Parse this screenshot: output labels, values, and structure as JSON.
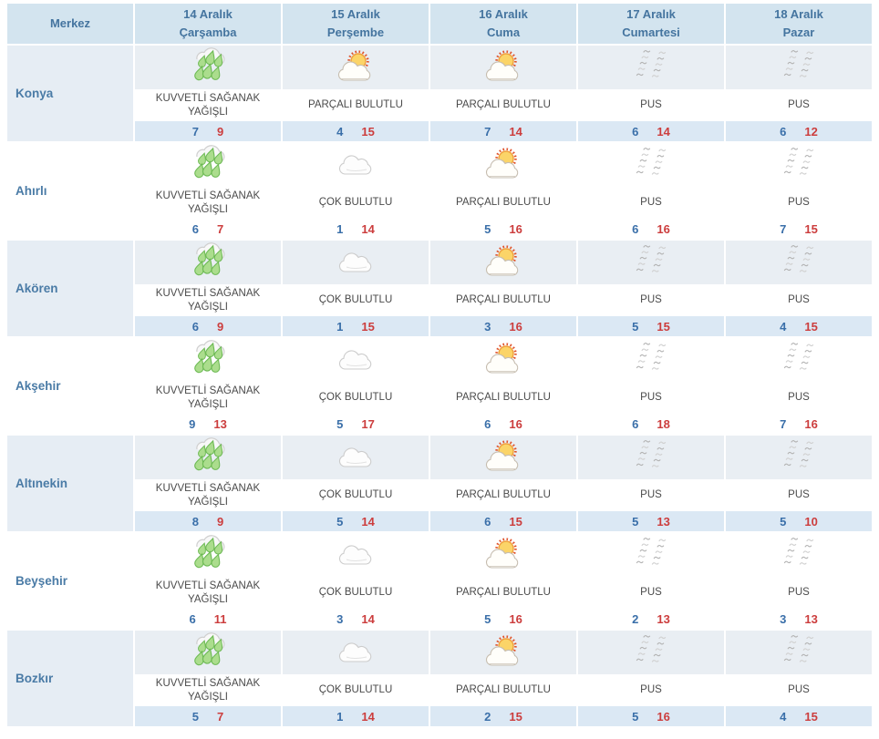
{
  "table": {
    "corner_label": "Merkez",
    "columns": [
      {
        "date": "14 Aralık",
        "day": "Çarşamba"
      },
      {
        "date": "15 Aralık",
        "day": "Perşembe"
      },
      {
        "date": "16 Aralık",
        "day": "Cuma"
      },
      {
        "date": "17 Aralık",
        "day": "Cumartesi"
      },
      {
        "date": "18 Aralık",
        "day": "Pazar"
      }
    ],
    "rows": [
      {
        "city": "Konya",
        "cells": [
          {
            "icon": "heavy-rain",
            "condition": "KUVVETLİ SAĞANAK YAĞIŞLI",
            "min": 7,
            "max": 9
          },
          {
            "icon": "partly-cloudy",
            "condition": "PARÇALI BULUTLU",
            "min": 4,
            "max": 15
          },
          {
            "icon": "partly-cloudy",
            "condition": "PARÇALI BULUTLU",
            "min": 7,
            "max": 14
          },
          {
            "icon": "mist",
            "condition": "PUS",
            "min": 6,
            "max": 14
          },
          {
            "icon": "mist",
            "condition": "PUS",
            "min": 6,
            "max": 12
          }
        ]
      },
      {
        "city": "Ahırlı",
        "cells": [
          {
            "icon": "heavy-rain",
            "condition": "KUVVETLİ SAĞANAK YAĞIŞLI",
            "min": 6,
            "max": 7
          },
          {
            "icon": "cloudy",
            "condition": "ÇOK BULUTLU",
            "min": 1,
            "max": 14
          },
          {
            "icon": "partly-cloudy",
            "condition": "PARÇALI BULUTLU",
            "min": 5,
            "max": 16
          },
          {
            "icon": "mist",
            "condition": "PUS",
            "min": 6,
            "max": 16
          },
          {
            "icon": "mist",
            "condition": "PUS",
            "min": 7,
            "max": 15
          }
        ]
      },
      {
        "city": "Akören",
        "cells": [
          {
            "icon": "heavy-rain",
            "condition": "KUVVETLİ SAĞANAK YAĞIŞLI",
            "min": 6,
            "max": 9
          },
          {
            "icon": "cloudy",
            "condition": "ÇOK BULUTLU",
            "min": 1,
            "max": 15
          },
          {
            "icon": "partly-cloudy",
            "condition": "PARÇALI BULUTLU",
            "min": 3,
            "max": 16
          },
          {
            "icon": "mist",
            "condition": "PUS",
            "min": 5,
            "max": 15
          },
          {
            "icon": "mist",
            "condition": "PUS",
            "min": 4,
            "max": 15
          }
        ]
      },
      {
        "city": "Akşehir",
        "cells": [
          {
            "icon": "heavy-rain",
            "condition": "KUVVETLİ SAĞANAK YAĞIŞLI",
            "min": 9,
            "max": 13
          },
          {
            "icon": "cloudy",
            "condition": "ÇOK BULUTLU",
            "min": 5,
            "max": 17
          },
          {
            "icon": "partly-cloudy",
            "condition": "PARÇALI BULUTLU",
            "min": 6,
            "max": 16
          },
          {
            "icon": "mist",
            "condition": "PUS",
            "min": 6,
            "max": 18
          },
          {
            "icon": "mist",
            "condition": "PUS",
            "min": 7,
            "max": 16
          }
        ]
      },
      {
        "city": "Altınekin",
        "cells": [
          {
            "icon": "heavy-rain",
            "condition": "KUVVETLİ SAĞANAK YAĞIŞLI",
            "min": 8,
            "max": 9
          },
          {
            "icon": "cloudy",
            "condition": "ÇOK BULUTLU",
            "min": 5,
            "max": 14
          },
          {
            "icon": "partly-cloudy",
            "condition": "PARÇALI BULUTLU",
            "min": 6,
            "max": 15
          },
          {
            "icon": "mist",
            "condition": "PUS",
            "min": 5,
            "max": 13
          },
          {
            "icon": "mist",
            "condition": "PUS",
            "min": 5,
            "max": 10
          }
        ]
      },
      {
        "city": "Beyşehir",
        "cells": [
          {
            "icon": "heavy-rain",
            "condition": "KUVVETLİ SAĞANAK YAĞIŞLI",
            "min": 6,
            "max": 11
          },
          {
            "icon": "cloudy",
            "condition": "ÇOK BULUTLU",
            "min": 3,
            "max": 14
          },
          {
            "icon": "partly-cloudy",
            "condition": "PARÇALI BULUTLU",
            "min": 5,
            "max": 16
          },
          {
            "icon": "mist",
            "condition": "PUS",
            "min": 2,
            "max": 13
          },
          {
            "icon": "mist",
            "condition": "PUS",
            "min": 3,
            "max": 13
          }
        ]
      },
      {
        "city": "Bozkır",
        "cells": [
          {
            "icon": "heavy-rain",
            "condition": "KUVVETLİ SAĞANAK YAĞIŞLI",
            "min": 5,
            "max": 7
          },
          {
            "icon": "cloudy",
            "condition": "ÇOK BULUTLU",
            "min": 1,
            "max": 14
          },
          {
            "icon": "partly-cloudy",
            "condition": "PARÇALI BULUTLU",
            "min": 2,
            "max": 15
          },
          {
            "icon": "mist",
            "condition": "PUS",
            "min": 5,
            "max": 16
          },
          {
            "icon": "mist",
            "condition": "PUS",
            "min": 4,
            "max": 15
          }
        ]
      }
    ]
  },
  "colors": {
    "header_bg": "#d3e4ef",
    "header_text": "#44749f",
    "city_text": "#4a7ba6",
    "condition_text": "#4a4a4a",
    "min_temp": "#3a6fa9",
    "max_temp": "#cc3d3d",
    "tint_icon": "#e9eef3",
    "tint_city": "#e6edf4",
    "tint_temp": "#dbe8f4"
  }
}
